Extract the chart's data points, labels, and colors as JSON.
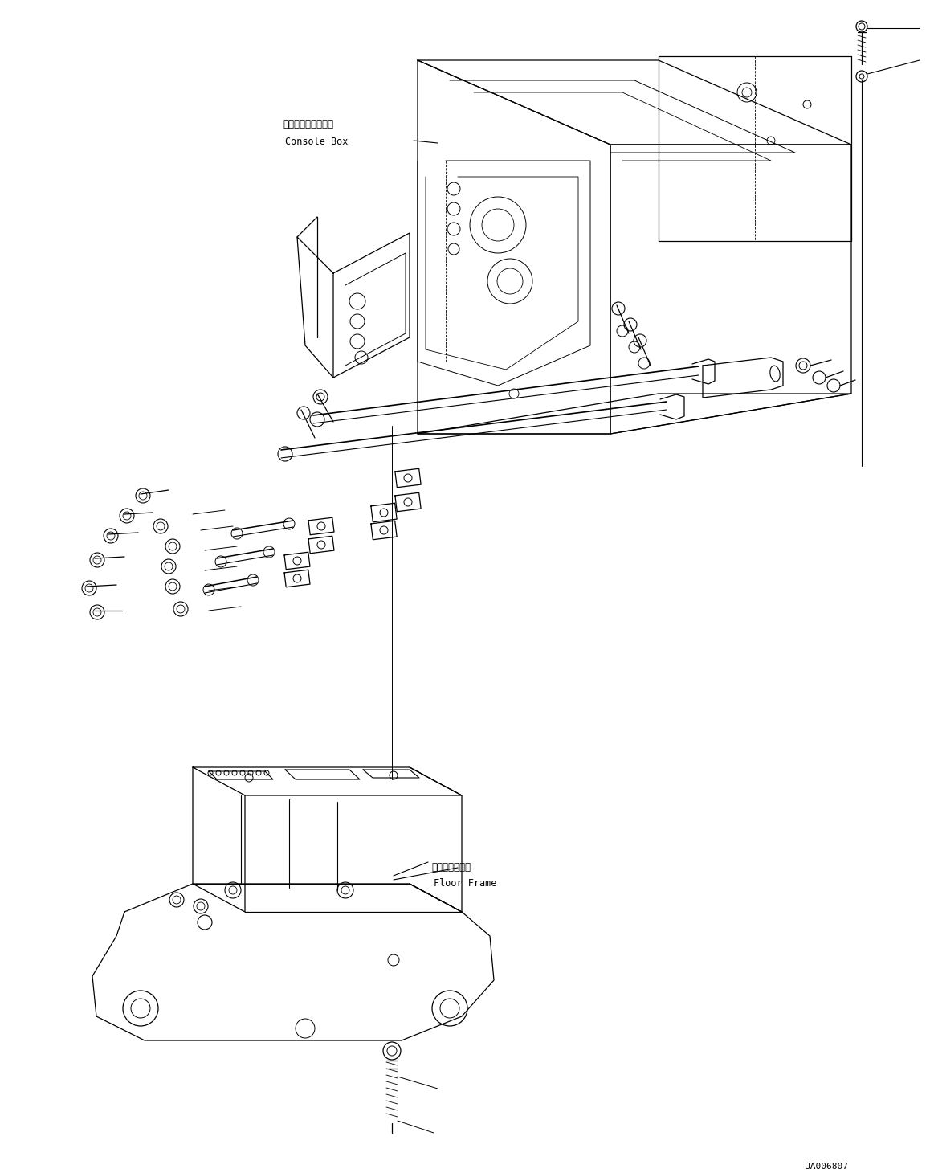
{
  "bg_color": "#ffffff",
  "line_color": "#000000",
  "fig_width": 11.63,
  "fig_height": 14.6,
  "dpi": 100,
  "label_console_jp": "コンソールボックス",
  "label_console_en": "Console Box",
  "label_floor_jp": "フロアフレーム",
  "label_floor_en": "Floor Frame",
  "diagram_id": "JA006807"
}
